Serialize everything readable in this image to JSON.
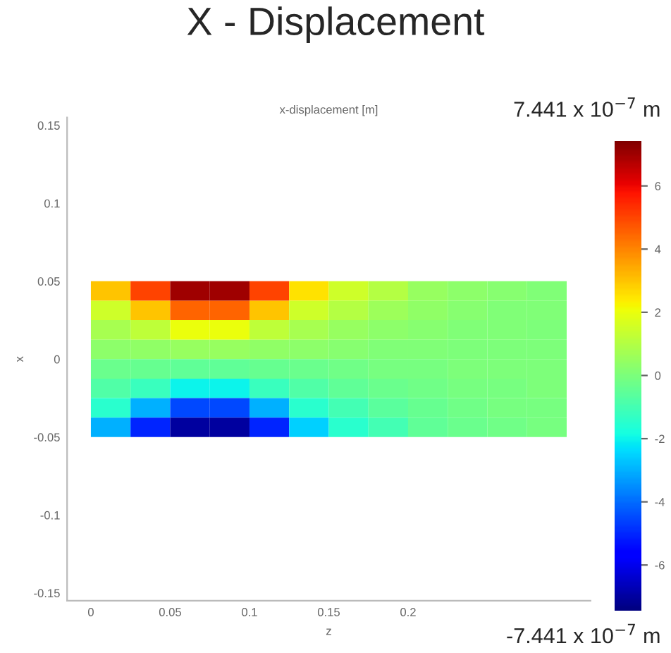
{
  "chart_data": {
    "type": "heatmap",
    "title": "X - Displacement",
    "subtitle": "x-displacement [m]",
    "xlabel": "z",
    "ylabel": "x",
    "annotations": [
      "7.441 x 10$^{−7}$ m",
      "-7.441 x 10$^{−7}$ m"
    ],
    "x": [
      0.0125,
      0.0375,
      0.0625,
      0.0875,
      0.1125,
      0.1375,
      0.1625,
      0.1875,
      0.2125,
      0.2375,
      0.2625,
      0.2875
    ],
    "y": [
      0.04375,
      0.03125,
      0.01875,
      0.00625,
      -0.00625,
      -0.01875,
      -0.03125,
      -0.04375
    ],
    "cells": [
      [
        3,
        5,
        7,
        7,
        5,
        2.5,
        1.5,
        1,
        0.5,
        0.3,
        0.2,
        0.1
      ],
      [
        1.5,
        3,
        4.5,
        4.5,
        3,
        1.5,
        1,
        0.6,
        0.4,
        0.2,
        0.1,
        0.1
      ],
      [
        0.8,
        1.2,
        2,
        2,
        1.2,
        0.8,
        0.5,
        0.3,
        0.2,
        0.1,
        0.1,
        0
      ],
      [
        0.3,
        0.4,
        0.5,
        0.5,
        0.4,
        0.3,
        0.2,
        0.1,
        0.1,
        0,
        0,
        0
      ],
      [
        -0.3,
        -0.4,
        -0.5,
        -0.5,
        -0.4,
        -0.3,
        -0.2,
        -0.1,
        -0.1,
        0,
        0,
        0
      ],
      [
        -0.8,
        -1.2,
        -2,
        -2,
        -1.2,
        -0.8,
        -0.5,
        -0.3,
        -0.2,
        -0.1,
        -0.1,
        0
      ],
      [
        -1.5,
        -3,
        -4.5,
        -4.5,
        -3,
        -1.5,
        -1,
        -0.6,
        -0.4,
        -0.2,
        -0.1,
        -0.1
      ],
      [
        -3,
        -5,
        -7,
        -7,
        -5,
        -2.5,
        -1.5,
        -1,
        -0.5,
        -0.3,
        -0.2,
        -0.1
      ]
    ],
    "xlim": [
      -0.015,
      0.315
    ],
    "ylim": [
      -0.155,
      0.155
    ],
    "xticks": [
      0,
      0.05,
      0.1,
      0.15,
      0.2
    ],
    "yticks": [
      -0.15,
      -0.1,
      -0.05,
      0,
      0.05,
      0.1,
      0.15
    ],
    "clim": [
      -7.441,
      7.441
    ],
    "cticks": [
      -6,
      -4,
      -2,
      0,
      2,
      4,
      6
    ],
    "grid": false
  }
}
